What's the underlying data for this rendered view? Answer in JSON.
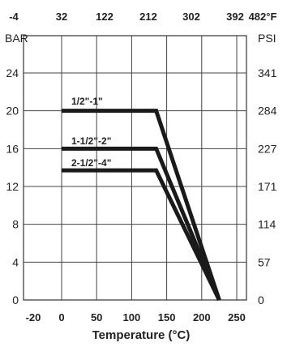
{
  "chart_data": {
    "type": "line",
    "title": "",
    "xlabel": "Temperature (°C)",
    "ylabel_left": "BAR",
    "ylabel_right": "PSI",
    "xlim": [
      -20,
      250
    ],
    "ylim": [
      0,
      28
    ],
    "grid": true,
    "x_ticks_bottom": [
      "-20",
      "0",
      "50",
      "100",
      "150",
      "200",
      "250"
    ],
    "x_ticks_top": [
      "-4",
      "32",
      "122",
      "212",
      "302",
      "392",
      "482°F"
    ],
    "y_ticks_left": [
      "0",
      "4",
      "8",
      "12",
      "16",
      "20",
      "24"
    ],
    "y_ticks_right": [
      "0",
      "57",
      "114",
      "171",
      "227",
      "284",
      "341"
    ],
    "series": [
      {
        "name": "1/2\"-1\"",
        "x": [
          0,
          135,
          225
        ],
        "y": [
          20,
          20,
          0
        ]
      },
      {
        "name": "1-1/2\"-2\"",
        "x": [
          0,
          135,
          225
        ],
        "y": [
          16,
          16,
          0
        ]
      },
      {
        "name": "2-1/2\"-4\"",
        "x": [
          0,
          135,
          225
        ],
        "y": [
          13.7,
          13.7,
          0
        ]
      }
    ],
    "line_color": "#1a1a1a"
  }
}
